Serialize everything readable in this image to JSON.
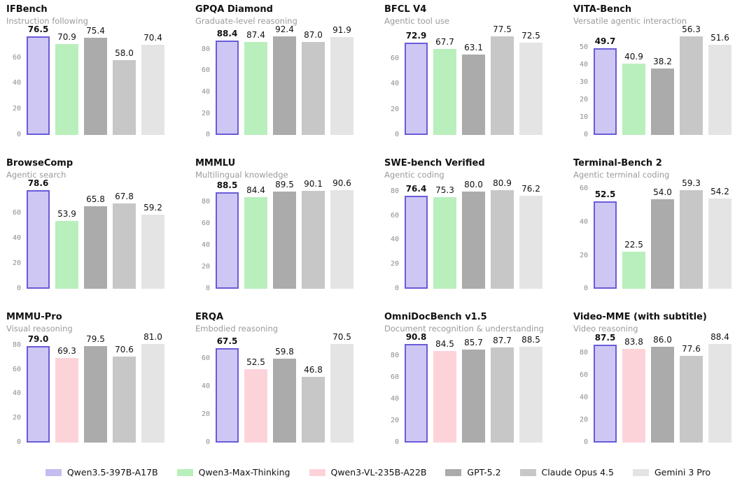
{
  "page": {
    "background": "#ffffff"
  },
  "model_colors": {
    "Qwen3.5-397B-A17B": {
      "fill": "#cec7f3",
      "border": "#695cd8"
    },
    "Qwen3-Max-Thinking": {
      "fill": "#b9efbc"
    },
    "Qwen3-VL-235B-A22B": {
      "fill": "#fdd3da"
    },
    "GPT-5.2": {
      "fill": "#ababab"
    },
    "Claude Opus 4.5": {
      "fill": "#c7c7c7"
    },
    "Gemini 3 Pro": {
      "fill": "#e4e4e4"
    }
  },
  "legend": [
    {
      "label": "Qwen3.5-397B-A17B",
      "color": "#c4bdf0"
    },
    {
      "label": "Qwen3-Max-Thinking",
      "color": "#b9efbc"
    },
    {
      "label": "Qwen3-VL-235B-A22B",
      "color": "#fdd3da"
    },
    {
      "label": "GPT-5.2",
      "color": "#ababab"
    },
    {
      "label": "Claude Opus 4.5",
      "color": "#c7c7c7"
    },
    {
      "label": "Gemini 3 Pro",
      "color": "#e4e4e4"
    }
  ],
  "chart_data": [
    {
      "type": "bar",
      "title": "IFBench",
      "subtitle": "Instruction following",
      "categories": [
        "Qwen3.5-397B-A17B",
        "Qwen3-Max-Thinking",
        "GPT-5.2",
        "Claude Opus 4.5",
        "Gemini 3 Pro"
      ],
      "values": [
        76.5,
        70.9,
        75.4,
        58.0,
        70.4
      ],
      "yticks": [
        0,
        20,
        40,
        60
      ],
      "ylim": [
        0,
        80.5
      ],
      "highlight_index": 0,
      "grid": false
    },
    {
      "type": "bar",
      "title": "GPQA Diamond",
      "subtitle": "Graduate-level reasoning",
      "categories": [
        "Qwen3.5-397B-A17B",
        "Qwen3-Max-Thinking",
        "GPT-5.2",
        "Claude Opus 4.5",
        "Gemini 3 Pro"
      ],
      "values": [
        88.4,
        87.4,
        92.4,
        87.0,
        91.9
      ],
      "yticks": [
        0,
        20,
        40,
        60,
        80
      ],
      "ylim": [
        0,
        97.0
      ],
      "highlight_index": 0,
      "grid": false
    },
    {
      "type": "bar",
      "title": "BFCL V4",
      "subtitle": "Agentic tool use",
      "categories": [
        "Qwen3.5-397B-A17B",
        "Qwen3-Max-Thinking",
        "GPT-5.2",
        "Claude Opus 4.5",
        "Gemini 3 Pro"
      ],
      "values": [
        72.9,
        67.7,
        63.1,
        77.5,
        72.5
      ],
      "yticks": [
        0,
        20,
        40,
        60
      ],
      "ylim": [
        0,
        81.5
      ],
      "highlight_index": 0,
      "grid": false
    },
    {
      "type": "bar",
      "title": "VITA-Bench",
      "subtitle": "Versatile agentic interaction",
      "categories": [
        "Qwen3.5-397B-A17B",
        "Qwen3-Max-Thinking",
        "GPT-5.2",
        "Claude Opus 4.5",
        "Gemini 3 Pro"
      ],
      "values": [
        49.7,
        40.9,
        38.2,
        56.3,
        51.6
      ],
      "yticks": [
        0,
        10,
        20,
        30,
        40,
        50
      ],
      "ylim": [
        0,
        59.2
      ],
      "highlight_index": 0,
      "grid": false
    },
    {
      "type": "bar",
      "title": "BrowseComp",
      "subtitle": "Agentic search",
      "categories": [
        "Qwen3.5-397B-A17B",
        "Qwen3-Max-Thinking",
        "GPT-5.2",
        "Claude Opus 4.5",
        "Gemini 3 Pro"
      ],
      "values": [
        78.6,
        53.9,
        65.8,
        67.8,
        59.2
      ],
      "yticks": [
        0,
        20,
        40,
        60
      ],
      "ylim": [
        0,
        82.5
      ],
      "highlight_index": 0,
      "grid": false
    },
    {
      "type": "bar",
      "title": "MMMLU",
      "subtitle": "Multilingual knowledge",
      "categories": [
        "Qwen3.5-397B-A17B",
        "Qwen3-Max-Thinking",
        "GPT-5.2",
        "Claude Opus 4.5",
        "Gemini 3 Pro"
      ],
      "values": [
        88.5,
        84.4,
        89.5,
        90.1,
        90.6
      ],
      "yticks": [
        0,
        20,
        40,
        60,
        80
      ],
      "ylim": [
        0,
        95.2
      ],
      "highlight_index": 0,
      "grid": false
    },
    {
      "type": "bar",
      "title": "SWE-bench Verified",
      "subtitle": "Agentic coding",
      "categories": [
        "Qwen3.5-397B-A17B",
        "Qwen3-Max-Thinking",
        "GPT-5.2",
        "Claude Opus 4.5",
        "Gemini 3 Pro"
      ],
      "values": [
        76.4,
        75.3,
        80.0,
        80.9,
        76.2
      ],
      "yticks": [
        0,
        20,
        40,
        60,
        80
      ],
      "ylim": [
        0,
        85.0
      ],
      "highlight_index": 0,
      "grid": false
    },
    {
      "type": "bar",
      "title": "Terminal-Bench 2",
      "subtitle": "Agentic terminal coding",
      "categories": [
        "Qwen3.5-397B-A17B",
        "Qwen3-Max-Thinking",
        "GPT-5.2",
        "Claude Opus 4.5",
        "Gemini 3 Pro"
      ],
      "values": [
        52.5,
        22.5,
        54.0,
        59.3,
        54.2
      ],
      "yticks": [
        0,
        20,
        40,
        60
      ],
      "ylim": [
        0,
        62.3
      ],
      "highlight_index": 0,
      "grid": false
    },
    {
      "type": "bar",
      "title": "MMMU-Pro",
      "subtitle": "Visual reasoning",
      "categories": [
        "Qwen3.5-397B-A17B",
        "Qwen3-VL-235B-A22B",
        "GPT-5.2",
        "Claude Opus 4.5",
        "Gemini 3 Pro"
      ],
      "values": [
        79.0,
        69.3,
        79.5,
        70.6,
        81.0
      ],
      "yticks": [
        0,
        20,
        40,
        60,
        80
      ],
      "ylim": [
        0,
        85.0
      ],
      "highlight_index": 0,
      "grid": false
    },
    {
      "type": "bar",
      "title": "ERQA",
      "subtitle": "Embodied reasoning",
      "categories": [
        "Qwen3.5-397B-A17B",
        "Qwen3-VL-235B-A22B",
        "GPT-5.2",
        "Claude Opus 4.5",
        "Gemini 3 Pro"
      ],
      "values": [
        67.5,
        52.5,
        59.8,
        46.8,
        70.5
      ],
      "yticks": [
        0,
        20,
        40,
        60
      ],
      "ylim": [
        0,
        74.0
      ],
      "highlight_index": 0,
      "grid": false
    },
    {
      "type": "bar",
      "title": "OmniDocBench v1.5",
      "subtitle": "Document recognition & understanding",
      "categories": [
        "Qwen3.5-397B-A17B",
        "Qwen3-VL-235B-A22B",
        "GPT-5.2",
        "Claude Opus 4.5",
        "Gemini 3 Pro"
      ],
      "values": [
        90.8,
        84.5,
        85.7,
        87.7,
        88.5
      ],
      "yticks": [
        0,
        20,
        40,
        60,
        80
      ],
      "ylim": [
        0,
        95.3
      ],
      "highlight_index": 0,
      "grid": false
    },
    {
      "type": "bar",
      "title": "Video-MME (with subtitle)",
      "subtitle": "Video reasoning",
      "categories": [
        "Qwen3.5-397B-A17B",
        "Qwen3-VL-235B-A22B",
        "GPT-5.2",
        "Claude Opus 4.5",
        "Gemini 3 Pro"
      ],
      "values": [
        87.5,
        83.8,
        86.0,
        77.6,
        88.4
      ],
      "yticks": [
        0,
        20,
        40,
        60,
        80
      ],
      "ylim": [
        0,
        92.8
      ],
      "highlight_index": 0,
      "grid": false
    }
  ]
}
